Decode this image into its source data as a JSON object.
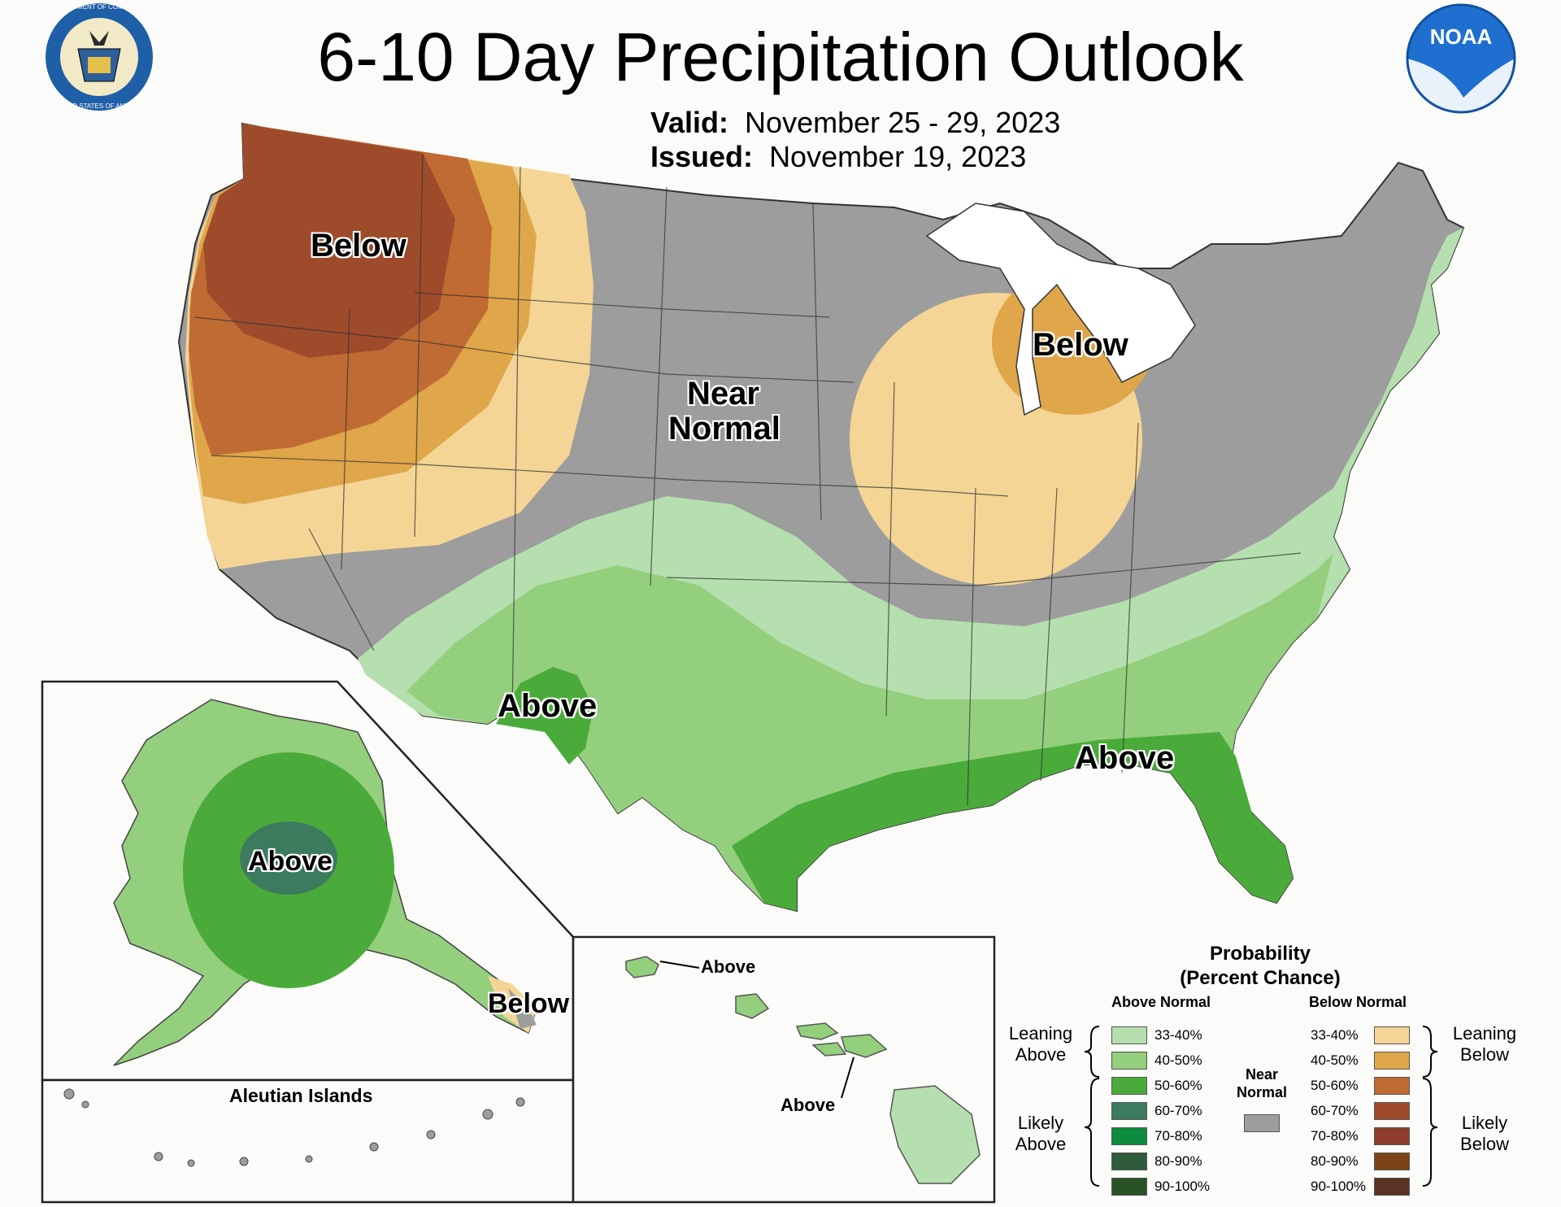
{
  "title": "6-10 Day Precipitation Outlook",
  "valid": {
    "label": "Valid:",
    "value": "November 25 - 29, 2023"
  },
  "issued": {
    "label": "Issued:",
    "value": "November 19, 2023"
  },
  "logos": {
    "left": "doc-seal-icon",
    "right": "noaa-logo-icon"
  },
  "seal_text": {
    "top": "DEPARTMENT OF COMMERCE",
    "bottom": "UNITED STATES OF AMERICA"
  },
  "noaa_text": "NOAA",
  "map_labels": {
    "west_below": "Below",
    "lakes_below": "Below",
    "near_normal_1": "Near",
    "near_normal_2": "Normal",
    "sw_above": "Above",
    "se_above": "Above",
    "alaska_above": "Above",
    "alaska_below": "Below",
    "hawaii_above_1": "Above",
    "hawaii_above_2": "Above"
  },
  "inset_labels": {
    "aleutian": "Aleutian Islands"
  },
  "legend": {
    "title_1": "Probability",
    "title_2": "(Percent Chance)",
    "above_header": "Above Normal",
    "below_header": "Below Normal",
    "near_normal_1": "Near",
    "near_normal_2": "Normal",
    "leaning_above_1": "Leaning",
    "leaning_above_2": "Above",
    "likely_above_1": "Likely",
    "likely_above_2": "Above",
    "leaning_below_1": "Leaning",
    "leaning_below_2": "Below",
    "likely_below_1": "Likely",
    "likely_below_2": "Below",
    "above": [
      {
        "label": "33-40%",
        "color": "#b5dfae"
      },
      {
        "label": "40-50%",
        "color": "#93cf7d"
      },
      {
        "label": "50-60%",
        "color": "#4aab3a"
      },
      {
        "label": "60-70%",
        "color": "#3d7b5f"
      },
      {
        "label": "70-80%",
        "color": "#0c8c3c"
      },
      {
        "label": "80-90%",
        "color": "#2f5a3c"
      },
      {
        "label": "90-100%",
        "color": "#275226"
      }
    ],
    "below": [
      {
        "label": "33-40%",
        "color": "#f4d595"
      },
      {
        "label": "40-50%",
        "color": "#dfa64a"
      },
      {
        "label": "50-60%",
        "color": "#c06b33"
      },
      {
        "label": "60-70%",
        "color": "#9e4b2c"
      },
      {
        "label": "70-80%",
        "color": "#8f3e2e"
      },
      {
        "label": "80-90%",
        "color": "#7b4316"
      },
      {
        "label": "90-100%",
        "color": "#5b3324"
      }
    ],
    "near_color": "#9d9d9d"
  }
}
